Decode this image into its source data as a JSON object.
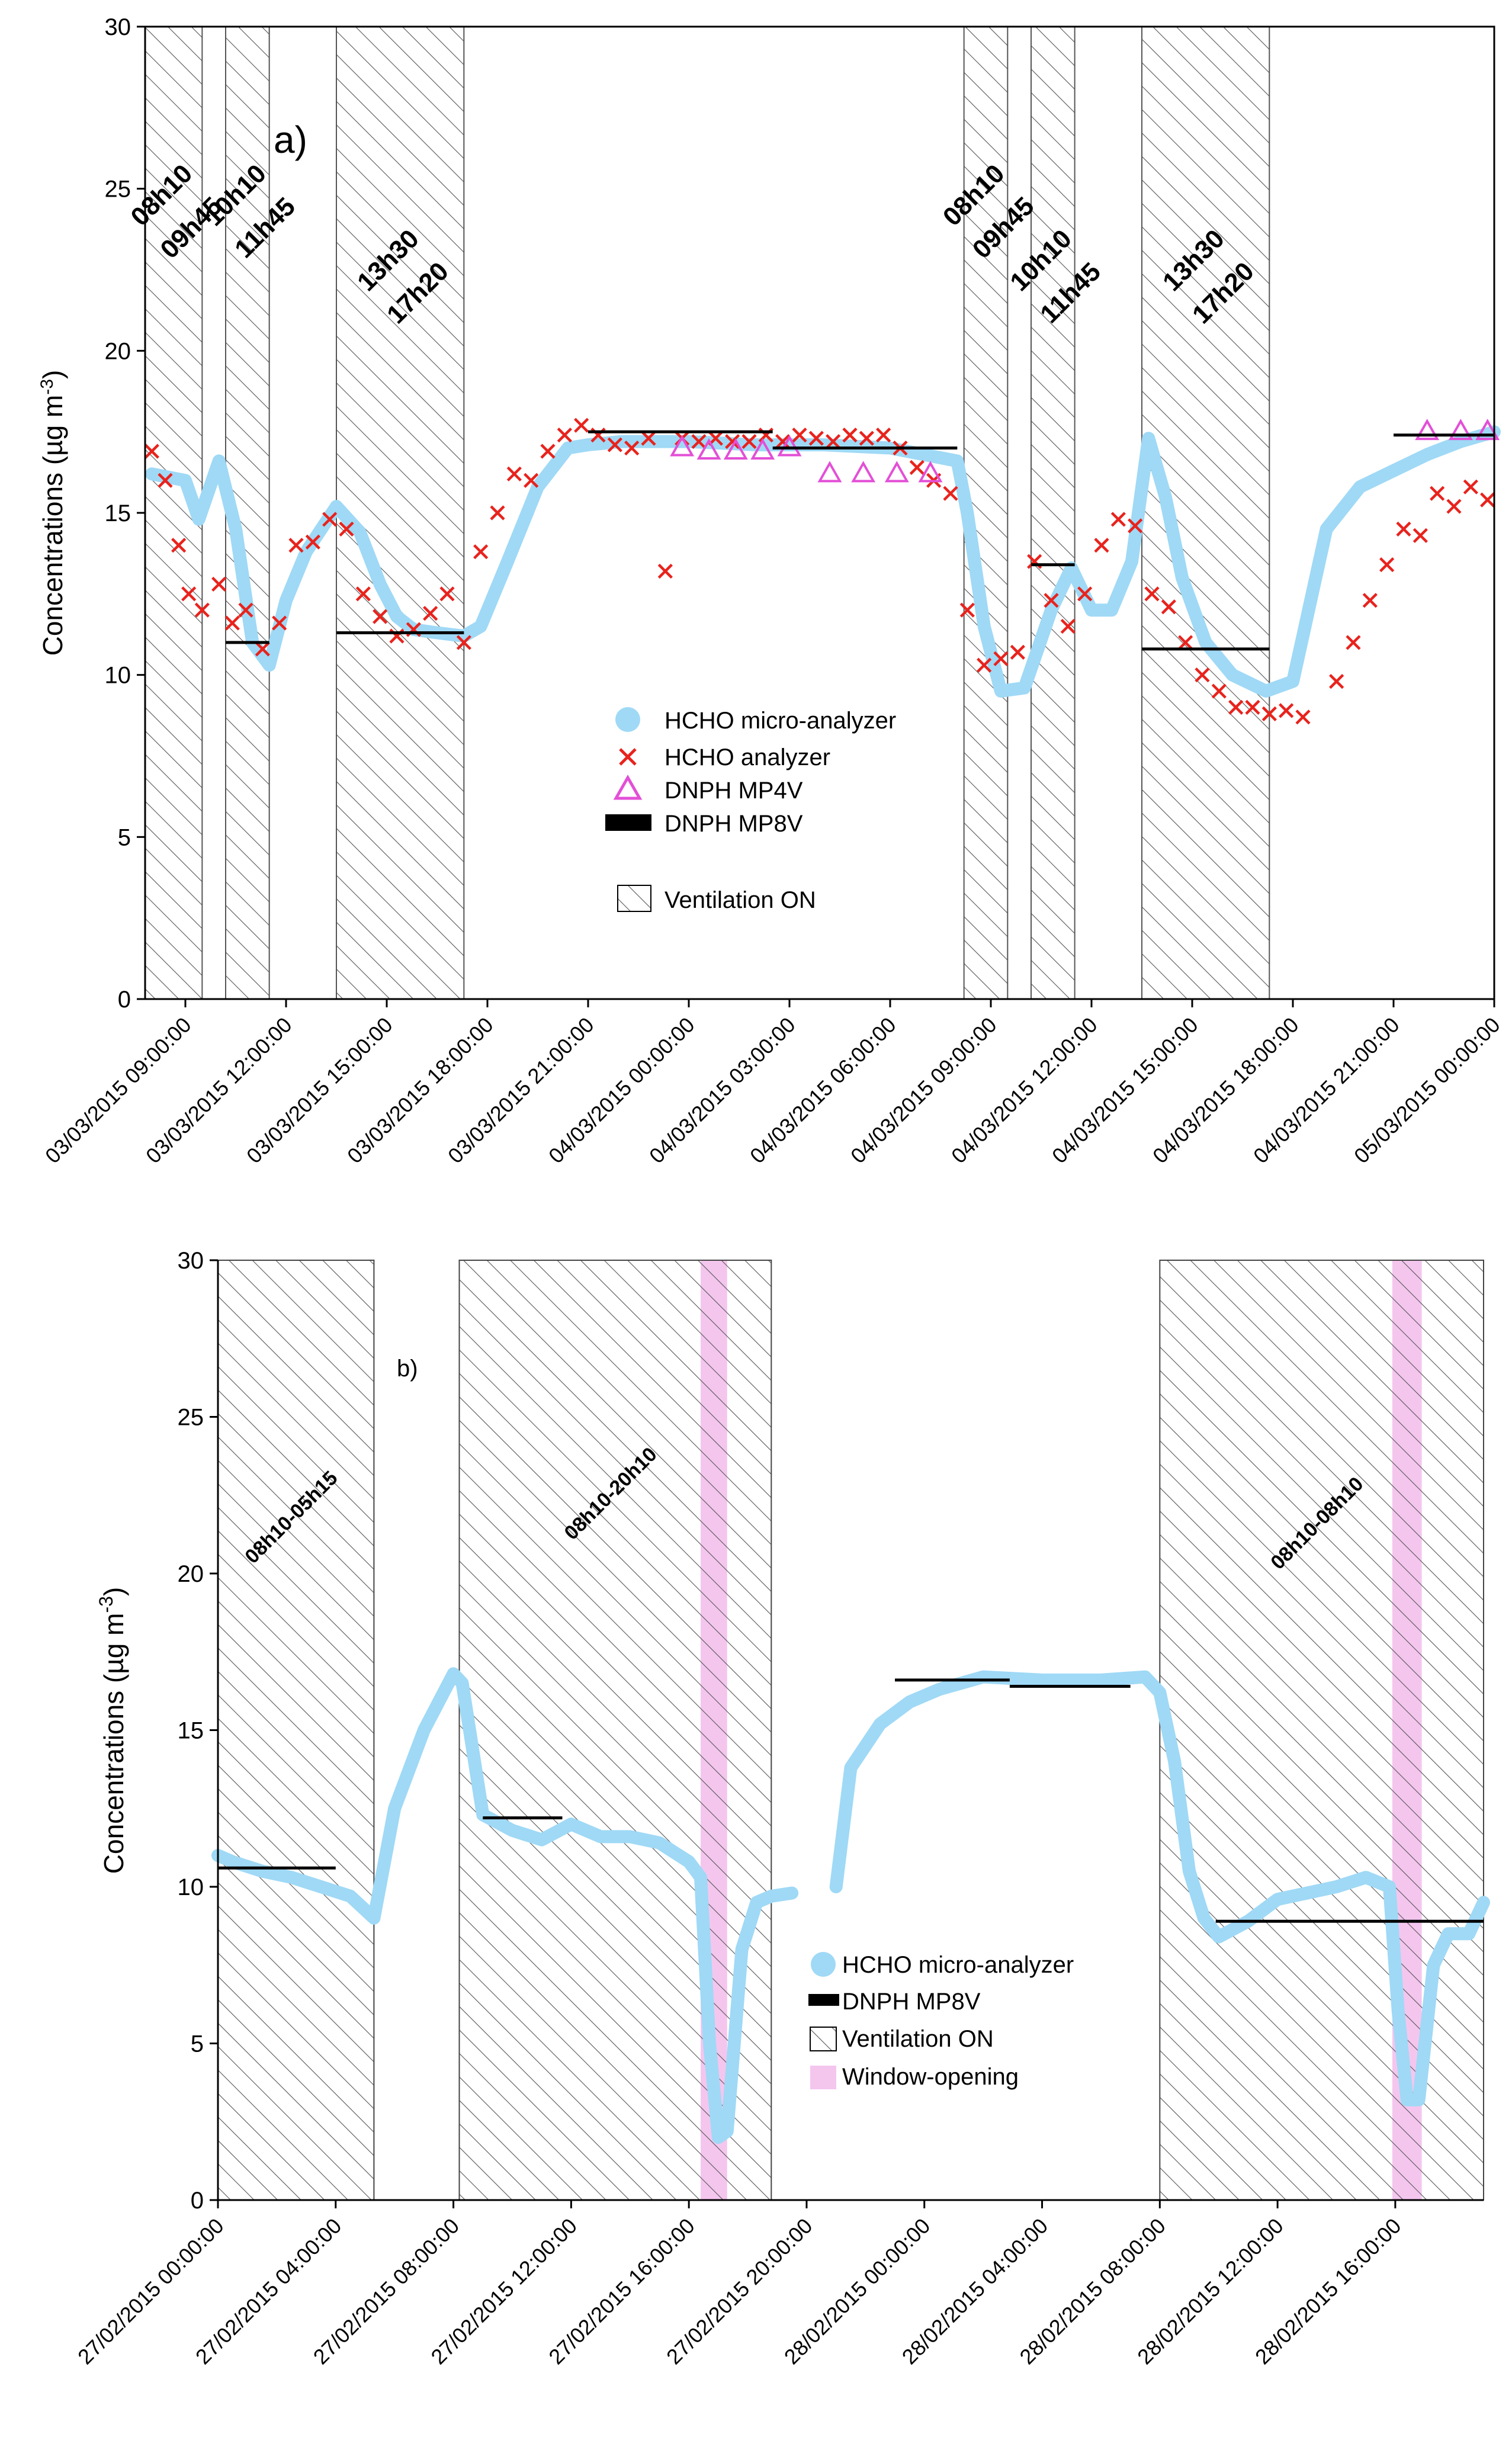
{
  "chart_data": [
    {
      "type": "scatter",
      "panel_label": "a)",
      "ylabel": "Concentrations (µg m",
      "ylabel_sup": "-3",
      "ylabel_end": ")",
      "ylim": [
        0,
        30
      ],
      "yticks": [
        "0",
        "5",
        "10",
        "15",
        "20",
        "25",
        "30"
      ],
      "x_unit": "hours since 03/03/2015 00:00",
      "xlim": [
        7.8,
        48.0
      ],
      "xticks": [
        {
          "t": 9,
          "label": "03/03/2015 09:00:00"
        },
        {
          "t": 12,
          "label": "03/03/2015 12:00:00"
        },
        {
          "t": 15,
          "label": "03/03/2015 15:00:00"
        },
        {
          "t": 18,
          "label": "03/03/2015 18:00:00"
        },
        {
          "t": 21,
          "label": "03/03/2015 21:00:00"
        },
        {
          "t": 24,
          "label": "04/03/2015 00:00:00"
        },
        {
          "t": 27,
          "label": "04/03/2015 03:00:00"
        },
        {
          "t": 30,
          "label": "04/03/2015 06:00:00"
        },
        {
          "t": 33,
          "label": "04/03/2015 09:00:00"
        },
        {
          "t": 36,
          "label": "04/03/2015 12:00:00"
        },
        {
          "t": 39,
          "label": "04/03/2015 15:00:00"
        },
        {
          "t": 42,
          "label": "04/03/2015 18:00:00"
        },
        {
          "t": 45,
          "label": "04/03/2015 21:00:00"
        },
        {
          "t": 48,
          "label": "05/03/2015 00:00:00"
        }
      ],
      "ventilation": [
        {
          "start": 7.8,
          "end": 9.5,
          "l1": "08h10",
          "l2": "09h45"
        },
        {
          "start": 10.2,
          "end": 11.5,
          "l1": "10h10",
          "l2": "11h45"
        },
        {
          "start": 13.5,
          "end": 17.3,
          "l1": "13h30",
          "l2": "17h20"
        },
        {
          "start": 32.2,
          "end": 33.5,
          "l1": "08h10",
          "l2": "09h45"
        },
        {
          "start": 34.2,
          "end": 35.5,
          "l1": "10h10",
          "l2": "11h45"
        },
        {
          "start": 37.5,
          "end": 41.3,
          "l1": "13h30",
          "l2": "17h20"
        }
      ],
      "micro_analyzer": {
        "name": "HCHO micro-analyzer",
        "x": [
          8.0,
          9.0,
          9.4,
          10.0,
          10.5,
          11.0,
          11.5,
          12.0,
          12.6,
          13.5,
          14.2,
          14.8,
          15.3,
          15.8,
          16.5,
          17.3,
          17.8,
          18.6,
          19.5,
          20.4,
          21.0,
          22.0,
          24.0,
          26.0,
          28.0,
          30.0,
          31.0,
          32.0,
          32.3,
          32.8,
          33.3,
          34.0,
          34.8,
          35.4,
          36.0,
          36.6,
          37.2,
          37.7,
          38.2,
          38.7,
          39.4,
          40.2,
          41.2,
          42.0,
          43.0,
          44.0,
          45.0,
          46.0,
          47.0,
          48.0
        ],
        "y": [
          16.2,
          16.0,
          14.8,
          16.6,
          14.5,
          11.0,
          10.3,
          12.3,
          13.8,
          15.2,
          14.4,
          12.8,
          11.8,
          11.4,
          11.3,
          11.2,
          11.5,
          13.5,
          15.8,
          17.0,
          17.1,
          17.2,
          17.2,
          17.1,
          17.1,
          17.0,
          16.8,
          16.6,
          15.0,
          11.5,
          9.5,
          9.6,
          12.0,
          13.3,
          12.0,
          12.0,
          13.5,
          17.3,
          15.5,
          13.0,
          11.0,
          10.0,
          9.5,
          9.8,
          14.5,
          15.8,
          16.3,
          16.8,
          17.2,
          17.5
        ]
      },
      "hcho_analyzer": {
        "name": "HCHO analyzer",
        "x": [
          8.0,
          8.4,
          8.8,
          9.1,
          9.5,
          10.0,
          10.4,
          10.8,
          11.3,
          11.8,
          12.3,
          12.8,
          13.3,
          13.8,
          14.3,
          14.8,
          15.3,
          15.8,
          16.3,
          16.8,
          17.3,
          17.8,
          18.3,
          18.8,
          19.3,
          19.8,
          20.3,
          20.8,
          21.3,
          21.8,
          22.3,
          22.8,
          23.3,
          23.8,
          24.3,
          24.8,
          25.3,
          25.8,
          26.3,
          26.8,
          27.3,
          27.8,
          28.3,
          28.8,
          29.3,
          29.8,
          30.3,
          30.8,
          31.3,
          31.8,
          32.3,
          32.8,
          33.3,
          33.8,
          34.3,
          34.8,
          35.3,
          35.8,
          36.3,
          36.8,
          37.3,
          37.8,
          38.3,
          38.8,
          39.3,
          39.8,
          40.3,
          40.8,
          41.3,
          41.8,
          42.3,
          43.3,
          43.8,
          44.3,
          44.8,
          45.3,
          45.8,
          46.3,
          46.8,
          47.3,
          47.8
        ],
        "y": [
          16.9,
          16.0,
          14.0,
          12.5,
          12.0,
          12.8,
          11.6,
          12.0,
          10.8,
          11.6,
          14.0,
          14.1,
          14.8,
          14.5,
          12.5,
          11.8,
          11.2,
          11.4,
          11.9,
          12.5,
          11.0,
          13.8,
          15.0,
          16.2,
          16.0,
          16.9,
          17.4,
          17.7,
          17.4,
          17.1,
          17.0,
          17.3,
          13.2,
          17.3,
          17.2,
          17.3,
          17.2,
          17.2,
          17.4,
          17.2,
          17.4,
          17.3,
          17.2,
          17.4,
          17.3,
          17.4,
          17.0,
          16.4,
          16.0,
          15.6,
          12.0,
          10.3,
          10.5,
          10.7,
          13.5,
          12.3,
          11.5,
          12.5,
          14.0,
          14.8,
          14.6,
          12.5,
          12.1,
          11.0,
          10.0,
          9.5,
          9.0,
          9.0,
          8.8,
          8.9,
          8.7,
          9.8,
          11.0,
          12.3,
          13.4,
          14.5,
          14.3,
          15.6,
          15.2,
          15.8,
          15.4
        ]
      },
      "dnph_mp4v": {
        "name": "DNPH MP4V",
        "x": [
          23.8,
          24.6,
          25.4,
          26.2,
          27.0,
          28.2,
          29.2,
          30.2,
          31.2,
          46.0,
          47.0,
          47.8
        ],
        "y": [
          17.0,
          16.9,
          16.9,
          16.9,
          17.0,
          16.2,
          16.2,
          16.2,
          16.2,
          17.5,
          17.5,
          17.5
        ]
      },
      "dnph_mp8v": {
        "name": "DNPH MP8V",
        "segments": [
          {
            "x0": 10.2,
            "x1": 11.5,
            "y": 11.0
          },
          {
            "x0": 13.5,
            "x1": 17.3,
            "y": 11.3
          },
          {
            "x0": 21.0,
            "x1": 26.5,
            "y": 17.5
          },
          {
            "x0": 26.5,
            "x1": 32.0,
            "y": 17.0
          },
          {
            "x0": 34.2,
            "x1": 35.5,
            "y": 13.4
          },
          {
            "x0": 37.5,
            "x1": 41.3,
            "y": 10.8
          },
          {
            "x0": 45.0,
            "x1": 48.0,
            "y": 17.4
          }
        ]
      },
      "legend": [
        "HCHO micro-analyzer",
        "HCHO analyzer",
        "DNPH MP4V",
        "DNPH MP8V",
        "Ventilation ON"
      ]
    },
    {
      "type": "line",
      "panel_label": "b)",
      "ylabel": "Concentrations (µg m",
      "ylabel_sup": "-3",
      "ylabel_end": ")",
      "ylim": [
        0,
        30
      ],
      "yticks": [
        "0",
        "5",
        "10",
        "15",
        "20",
        "25",
        "30"
      ],
      "x_unit": "hours since 27/02/2015 00:00",
      "xlim": [
        0,
        43.0
      ],
      "xticks": [
        {
          "t": 0,
          "label": "27/02/2015 00:00:00"
        },
        {
          "t": 4,
          "label": "27/02/2015 04:00:00"
        },
        {
          "t": 8,
          "label": "27/02/2015 08:00:00"
        },
        {
          "t": 12,
          "label": "27/02/2015 12:00:00"
        },
        {
          "t": 16,
          "label": "27/02/2015 16:00:00"
        },
        {
          "t": 20,
          "label": "27/02/2015 20:00:00"
        },
        {
          "t": 24,
          "label": "28/02/2015 00:00:00"
        },
        {
          "t": 28,
          "label": "28/02/2015 04:00:00"
        },
        {
          "t": 32,
          "label": "28/02/2015 08:00:00"
        },
        {
          "t": 36,
          "label": "28/02/2015 12:00:00"
        },
        {
          "t": 40,
          "label": "28/02/2015 16:00:00"
        }
      ],
      "ventilation": [
        {
          "start": 0.0,
          "end": 5.3,
          "label": "08h10-05h15"
        },
        {
          "start": 8.2,
          "end": 18.8,
          "label": "08h10-20h10"
        },
        {
          "start": 32.0,
          "end": 43.0,
          "label": "08h10-08h10"
        }
      ],
      "window_opening": [
        {
          "start": 16.4,
          "end": 17.3
        },
        {
          "start": 39.9,
          "end": 40.9
        }
      ],
      "micro_analyzer": {
        "name": "HCHO micro-analyzer",
        "x": [
          0.0,
          0.5,
          1.5,
          2.5,
          3.5,
          4.5,
          5.3,
          6.0,
          7.0,
          8.0,
          8.3,
          9.0,
          10.0,
          11.0,
          12.0,
          13.0,
          14.0,
          15.0,
          16.0,
          16.4,
          16.7,
          17.0,
          17.3,
          17.8,
          18.3,
          18.8,
          19.5,
          20.5,
          21.0,
          21.5,
          22.5,
          23.5,
          24.5,
          26.0,
          28.0,
          30.0,
          31.5,
          32.0,
          32.5,
          33.0,
          33.5,
          34.0,
          35.0,
          36.0,
          37.0,
          38.0,
          39.0,
          39.8,
          40.1,
          40.4,
          40.8,
          41.3,
          41.8,
          42.5,
          43.0
        ],
        "y": [
          11.0,
          10.8,
          10.5,
          10.3,
          10.0,
          9.7,
          9.0,
          12.5,
          15.0,
          16.8,
          16.5,
          12.3,
          11.8,
          11.5,
          12.0,
          11.6,
          11.6,
          11.4,
          10.8,
          10.3,
          5.0,
          2.0,
          2.2,
          8.0,
          9.5,
          9.7,
          9.8,
          null,
          10.0,
          13.8,
          15.2,
          15.9,
          16.3,
          16.7,
          16.6,
          16.6,
          16.7,
          16.2,
          14.0,
          10.5,
          9.0,
          8.4,
          8.9,
          9.6,
          9.8,
          10.0,
          10.3,
          10.0,
          6.0,
          3.2,
          3.2,
          7.5,
          8.5,
          8.5,
          9.5
        ]
      },
      "dnph_mp8v": {
        "name": "DNPH MP8V",
        "segments": [
          {
            "x0": 0.0,
            "x1": 4.0,
            "y": 10.6
          },
          {
            "x0": 9.0,
            "x1": 11.7,
            "y": 12.2
          },
          {
            "x0": 23.0,
            "x1": 26.9,
            "y": 16.6
          },
          {
            "x0": 26.9,
            "x1": 31.0,
            "y": 16.4
          },
          {
            "x0": 33.9,
            "x1": 43.0,
            "y": 8.9
          }
        ]
      },
      "legend": [
        "HCHO micro-analyzer",
        "DNPH MP8V",
        "Ventilation ON",
        "Window-opening"
      ]
    }
  ],
  "colors": {
    "micro": "#9fd9f6",
    "analyzer": "#e8231d",
    "mp4v": "#e34fd6",
    "mp8v": "#000000",
    "window": "#f4c6ee",
    "hatch": "#555555"
  }
}
